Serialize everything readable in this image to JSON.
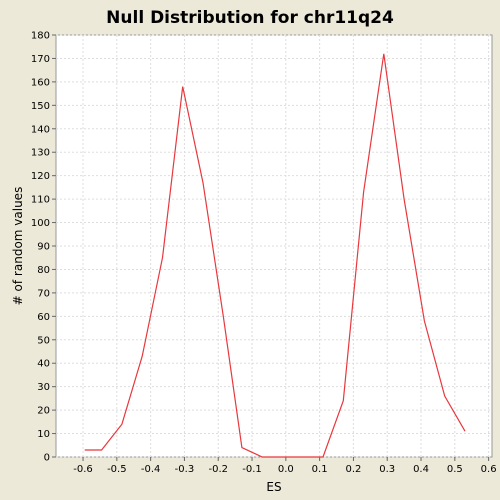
{
  "chart_data": {
    "type": "line",
    "title": "Null Distribution for chr11q24",
    "xlabel": "ES",
    "ylabel": "# of random values",
    "xlim": [
      -0.68,
      0.61
    ],
    "ylim": [
      0,
      180
    ],
    "x_ticks": [
      "-0.6",
      "-0.5",
      "-0.4",
      "-0.3",
      "-0.2",
      "-0.1",
      "0.0",
      "0.1",
      "0.2",
      "0.3",
      "0.4",
      "0.5",
      "0.6"
    ],
    "y_ticks": [
      "0",
      "10",
      "20",
      "30",
      "40",
      "50",
      "60",
      "70",
      "80",
      "90",
      "100",
      "110",
      "120",
      "130",
      "140",
      "150",
      "160",
      "170",
      "180"
    ],
    "grid": true,
    "series": [
      {
        "color": "#E8383D",
        "x": [
          -0.595,
          -0.545,
          -0.485,
          -0.425,
          -0.365,
          -0.305,
          -0.245,
          -0.185,
          -0.13,
          -0.07,
          -0.01,
          0.05,
          0.11,
          0.17,
          0.23,
          0.29,
          0.35,
          0.41,
          0.47,
          0.53
        ],
        "y": [
          3,
          3,
          14,
          43,
          85,
          158,
          117,
          60,
          4,
          0,
          0,
          0,
          0,
          24,
          113,
          172,
          110,
          58,
          26,
          11
        ]
      }
    ]
  }
}
